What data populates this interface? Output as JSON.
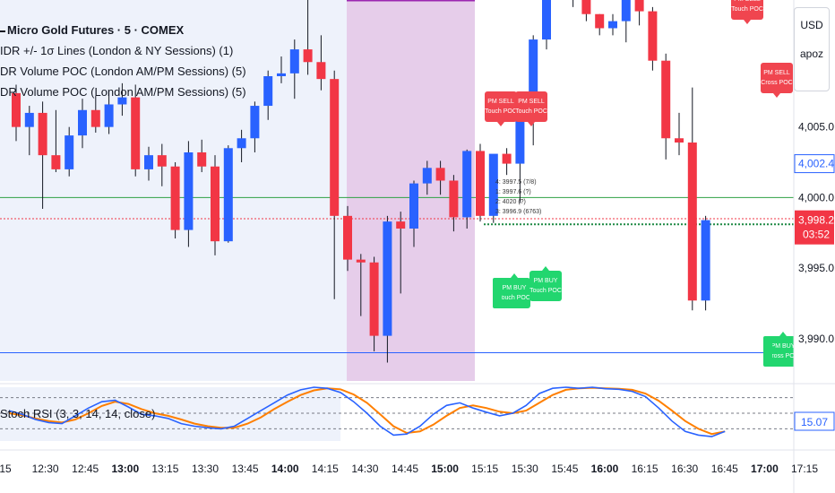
{
  "symbol": {
    "title": "Micro Gold Futures · 5 · COMEX"
  },
  "indicators": [
    "IDR +/- 1σ Lines (London & NY Sessions) (1)",
    "DR Volume POC (London AM/PM Sessions) (5)",
    "DR Volume POC (London AM/PM Sessions) (5)"
  ],
  "price_scale": {
    "currency": "USD",
    "unit": "apoz",
    "ticks": [
      "4,005.0",
      "4,000.0",
      "3,995.0",
      "3,990.0"
    ],
    "current_price": "4,002.4",
    "last_price": "3,998.2",
    "countdown": "03:52",
    "oscillator_value": "15.07"
  },
  "oscillator": {
    "label": "Stoch RSI (3, 3, 14, 14, close)"
  },
  "time_axis": {
    "ticks": [
      "15",
      "12:30",
      "12:45",
      "13:00",
      "13:15",
      "13:30",
      "13:45",
      "14:00",
      "14:15",
      "14:30",
      "14:45",
      "15:00",
      "15:15",
      "15:30",
      "15:45",
      "16:00",
      "16:15",
      "16:30",
      "16:45",
      "17:00",
      "17:15"
    ],
    "bold": [
      "13:00",
      "14:00",
      "15:00",
      "16:00",
      "17:00"
    ]
  },
  "signals": {
    "sell": [
      "PM SELL\nTouch POC",
      "PM SELL\nTouch POC",
      "PM SELL\nTouch POC",
      "PM SELL\nCross POC"
    ],
    "buy": [
      "PM BUY\nTouch POC",
      "PM BUY\nTouch POC",
      "PM BUY\nCross POC"
    ]
  },
  "level_labels": [
    "4: 3997.5 (7/8)",
    "1: 3997.6 (?)",
    "2: 4020 (?)",
    "3: 3996.9 (6763)"
  ],
  "colors": {
    "bull": "#2962ff",
    "bear": "#f23645",
    "session_am": "#eef2fb",
    "session_pm": "#e6cdea",
    "buy_badge": "#22d66f",
    "sell_badge": "#f0454f"
  },
  "chart_data": {
    "type": "candlestick",
    "title": "Micro Gold Futures · 5 · COMEX",
    "ylim": [
      3987,
      4014
    ],
    "ohlc": [
      [
        4007.4,
        4008.0,
        4004.0,
        4005.0
      ],
      [
        4005.0,
        4006.5,
        4003.0,
        4006.0
      ],
      [
        4006.0,
        4006.8,
        3999.2,
        4003.0
      ],
      [
        4003.0,
        4006.2,
        4001.8,
        4002.0
      ],
      [
        4002.0,
        4005.0,
        4001.5,
        4004.4
      ],
      [
        4004.4,
        4007.0,
        4003.5,
        4006.2
      ],
      [
        4006.2,
        4007.2,
        4004.6,
        4005.0
      ],
      [
        4005.0,
        4007.5,
        4004.5,
        4006.6
      ],
      [
        4006.6,
        4008.1,
        4005.8,
        4007.1
      ],
      [
        4007.1,
        4008.0,
        4001.5,
        4002.0
      ],
      [
        4002.0,
        4003.6,
        4001.2,
        4003.0
      ],
      [
        4003.0,
        4003.8,
        4000.8,
        4002.2
      ],
      [
        4002.2,
        4002.5,
        3997.1,
        3997.7
      ],
      [
        3997.7,
        4004.0,
        3996.5,
        4003.2
      ],
      [
        4003.2,
        4004.1,
        4001.8,
        4002.2
      ],
      [
        4002.2,
        4003.0,
        3995.9,
        3996.9
      ],
      [
        3996.9,
        4003.7,
        3996.8,
        4003.5
      ],
      [
        4003.5,
        4004.8,
        4002.5,
        4004.2
      ],
      [
        4004.2,
        4006.8,
        4003.2,
        4006.5
      ],
      [
        4006.5,
        4009.0,
        4005.5,
        4008.6
      ],
      [
        4008.6,
        4010.0,
        4008.1,
        4008.8
      ],
      [
        4008.8,
        4011.2,
        4007.0,
        4010.5
      ],
      [
        4010.5,
        4016.0,
        4008.7,
        4009.6
      ],
      [
        4009.6,
        4011.5,
        4007.6,
        4008.4
      ],
      [
        4008.4,
        4009.0,
        3992.8,
        3998.7
      ],
      [
        3998.7,
        3999.4,
        3994.8,
        3995.6
      ],
      [
        3995.6,
        3996.0,
        3991.6,
        3995.4
      ],
      [
        3995.4,
        3995.8,
        3989.1,
        3990.2
      ],
      [
        3990.2,
        3998.7,
        3988.3,
        3998.3
      ],
      [
        3998.3,
        3999.0,
        3993.2,
        3997.8
      ],
      [
        3997.8,
        4001.2,
        3996.5,
        4001.0
      ],
      [
        4001.0,
        4002.6,
        4000.2,
        4002.1
      ],
      [
        4002.1,
        4002.6,
        4000.2,
        4001.2
      ],
      [
        4001.2,
        4001.6,
        3997.6,
        3998.6
      ],
      [
        3998.6,
        4003.4,
        3997.8,
        4003.3
      ],
      [
        4003.3,
        4003.8,
        3998.3,
        3998.7
      ],
      [
        3998.7,
        4003.0,
        3998.2,
        4003.1
      ],
      [
        4003.1,
        4003.5,
        4001.6,
        4002.4
      ],
      [
        4002.4,
        4006.2,
        3999.6,
        4005.6
      ],
      [
        4005.6,
        4011.5,
        4003.7,
        4011.2
      ],
      [
        4011.2,
        4016.0,
        4010.5,
        4016.0
      ],
      [
        4016.0,
        4016.0,
        4014.5,
        4015.0
      ],
      [
        4015.0,
        4015.0,
        4013.5,
        4014.0
      ],
      [
        4014.0,
        4014.0,
        4012.5,
        4013.0
      ],
      [
        4013.0,
        4013.0,
        4011.5,
        4012.0
      ],
      [
        4012.0,
        4013.0,
        4011.5,
        4012.5
      ],
      [
        4012.5,
        4014.5,
        4011.0,
        4014.4
      ],
      [
        4014.4,
        4015.0,
        4012.2,
        4013.2
      ],
      [
        4013.2,
        4013.5,
        4009.0,
        4009.7
      ],
      [
        4009.7,
        4010.2,
        4002.7,
        4004.2
      ],
      [
        4004.2,
        4006.0,
        4003.0,
        4003.9
      ],
      [
        4003.9,
        4007.8,
        3992.0,
        3992.7
      ],
      [
        3992.7,
        3998.7,
        3992.0,
        3998.4
      ]
    ],
    "levels": [
      {
        "price": 4000.0,
        "color": "#2ea043"
      },
      {
        "price": 3998.5,
        "color": "#f23645",
        "style": "dotted"
      },
      {
        "price": 3998.1,
        "color": "#1e8a45",
        "style": "dotted"
      },
      {
        "price": 3989.0,
        "color": "#2962ff"
      }
    ],
    "stoch_rsi": {
      "k": [
        55,
        48,
        38,
        32,
        30,
        45,
        60,
        72,
        75,
        62,
        48,
        45,
        40,
        30,
        25,
        22,
        20,
        25,
        40,
        55,
        70,
        85,
        95,
        100,
        98,
        90,
        72,
        50,
        25,
        8,
        10,
        25,
        48,
        65,
        70,
        60,
        52,
        45,
        50,
        65,
        88,
        98,
        100,
        98,
        100,
        97,
        96,
        92,
        82,
        60,
        35,
        15,
        8,
        5,
        15
      ],
      "d": [
        50,
        46,
        40,
        35,
        32,
        38,
        50,
        64,
        72,
        68,
        58,
        50,
        45,
        38,
        30,
        25,
        22,
        22,
        30,
        42,
        58,
        72,
        85,
        94,
        98,
        96,
        86,
        70,
        48,
        25,
        12,
        15,
        28,
        45,
        60,
        65,
        60,
        53,
        50,
        55,
        70,
        85,
        95,
        98,
        99,
        98,
        97,
        95,
        88,
        74,
        55,
        35,
        20,
        10,
        15
      ],
      "bands": [
        80,
        50,
        20
      ]
    }
  }
}
